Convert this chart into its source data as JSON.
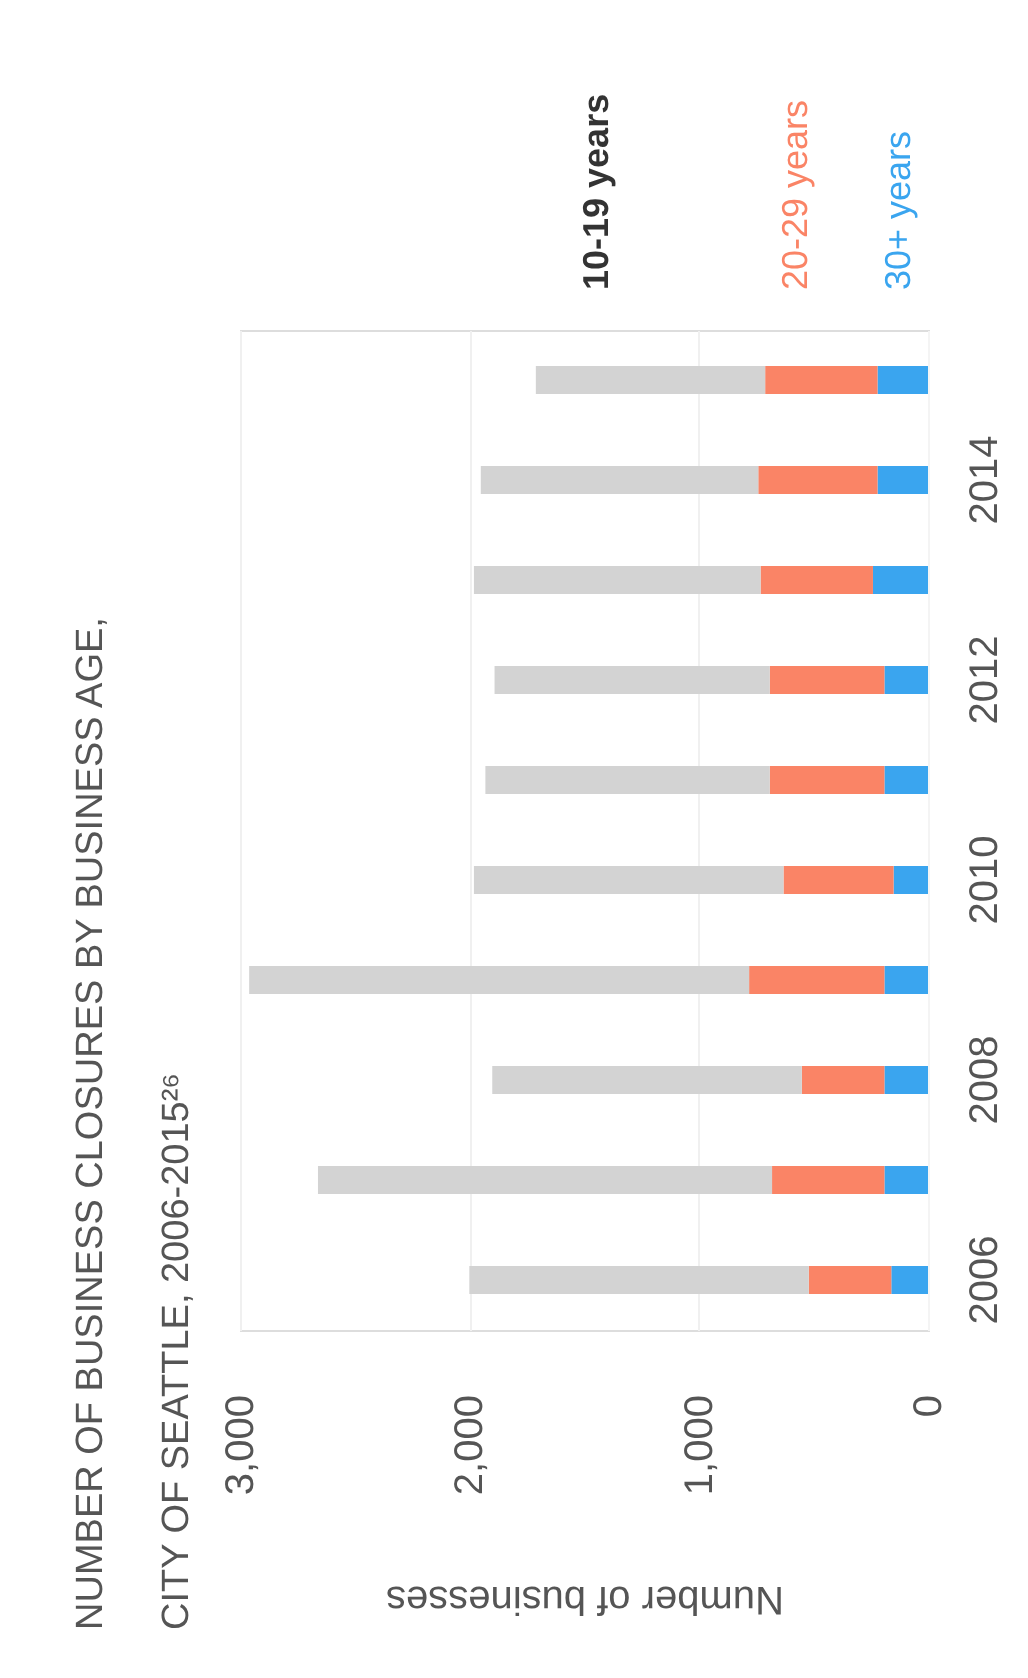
{
  "chart_data": {
    "type": "bar",
    "orientation": "horizontal",
    "stacked": true,
    "title": "NUMBER OF BUSINESS CLOSURES BY BUSINESS AGE,",
    "subtitle": "CITY OF SEATTLE, 2006-2015²⁶",
    "xlabel": "Number of businesses",
    "categories": [
      null,
      "2014",
      null,
      "2012",
      null,
      "2010",
      null,
      "2008",
      null,
      "2006"
    ],
    "series": [
      {
        "name": "30+ years",
        "color": "#3aa5ef",
        "values": [
          220,
          220,
          240,
          190,
          190,
          150,
          190,
          190,
          190,
          160
        ]
      },
      {
        "name": "20-29 years",
        "color": "#fa8466",
        "values": [
          490,
          520,
          490,
          500,
          500,
          480,
          590,
          360,
          490,
          360
        ]
      },
      {
        "name": "10-19 years",
        "color": "#d3d3d3",
        "values": [
          1000,
          1210,
          1250,
          1200,
          1240,
          1350,
          2180,
          1350,
          1980,
          1480
        ]
      }
    ],
    "xlim": [
      3000,
      0
    ],
    "xticks": [
      {
        "value": 3000,
        "label": "3,000"
      },
      {
        "value": 2000,
        "label": "2,000"
      },
      {
        "value": 1000,
        "label": "1,000"
      },
      0
    ],
    "grid": "x",
    "legend": "top"
  }
}
